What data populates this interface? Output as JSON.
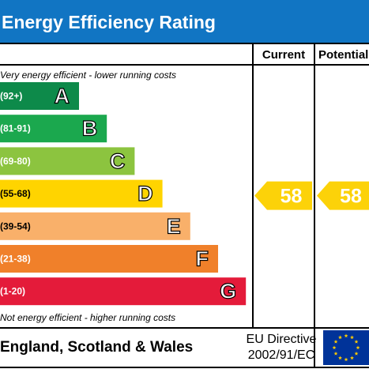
{
  "title": "Energy Efficiency Rating",
  "columns": {
    "current": "Current",
    "potential": "Potential"
  },
  "notes": {
    "top": "Very energy efficient - lower running costs",
    "bottom": "Not energy efficient - higher running costs"
  },
  "footer": {
    "region": "England, Scotland & Wales",
    "directive_line1": "EU Directive",
    "directive_line2": "2002/91/EC",
    "flag_icon": "eu-flag-icon"
  },
  "colors": {
    "header_bg": "#1175c3",
    "marker": "#fcd209",
    "A": "#0d8a4a",
    "B": "#1ba84e",
    "C": "#8cc43f",
    "D": "#ffd400",
    "E": "#f9b06a",
    "F": "#f0802a",
    "G": "#e41b3a"
  },
  "chart_data": {
    "type": "bar",
    "title": "Energy Efficiency Rating",
    "bands": [
      {
        "letter": "A",
        "range": "(92+)"
      },
      {
        "letter": "B",
        "range": "(81-91)"
      },
      {
        "letter": "C",
        "range": "(69-80)"
      },
      {
        "letter": "D",
        "range": "(55-68)"
      },
      {
        "letter": "E",
        "range": "(39-54)"
      },
      {
        "letter": "F",
        "range": "(21-38)"
      },
      {
        "letter": "G",
        "range": "(1-20)"
      }
    ],
    "current": {
      "value": 58,
      "band": "D"
    },
    "potential": {
      "value": 58,
      "band": "D"
    }
  }
}
